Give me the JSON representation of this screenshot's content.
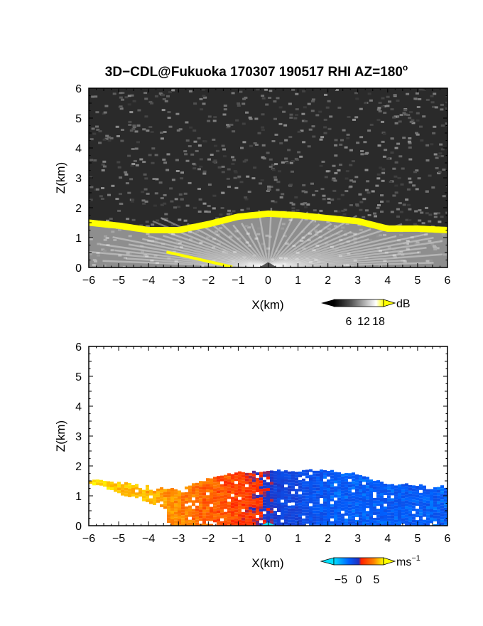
{
  "chart_data": [
    {
      "type": "heatmap",
      "title": "3D−CDL@Fukuoka 170307 190517 RHI AZ=180",
      "title_sup": "o",
      "xlabel": "X(km)",
      "ylabel": "Z(km)",
      "xlim": [
        -6,
        6
      ],
      "ylim": [
        0,
        6
      ],
      "xticks": [
        "−6",
        "−5",
        "−4",
        "−3",
        "−2",
        "−1",
        "0",
        "1",
        "2",
        "3",
        "4",
        "5",
        "6"
      ],
      "yticks": [
        "0",
        "1",
        "2",
        "3",
        "4",
        "5",
        "6"
      ],
      "variable": "SNR",
      "colorbar": {
        "unit": "dB",
        "ticks": [
          "6",
          "12",
          "18"
        ],
        "range": [
          0,
          20
        ],
        "colors": [
          "#000000",
          "#ffffff",
          "#ffff00"
        ]
      },
      "cloud_top_km": [
        [
          -6,
          1.55
        ],
        [
          -5,
          1.45
        ],
        [
          -4,
          1.3
        ],
        [
          -3,
          1.3
        ],
        [
          -2,
          1.5
        ],
        [
          -1,
          1.75
        ],
        [
          0,
          1.85
        ],
        [
          1,
          1.8
        ],
        [
          2,
          1.7
        ],
        [
          3,
          1.6
        ],
        [
          4,
          1.35
        ],
        [
          5,
          1.35
        ],
        [
          6,
          1.3
        ]
      ],
      "background": "noise",
      "colors": {
        "background": "#2a2a2a",
        "echo_edge": "#ffff00",
        "echo_core": "#e0e0e0"
      }
    },
    {
      "type": "heatmap",
      "xlabel": "X(km)",
      "ylabel": "Z(km)",
      "xlim": [
        -6,
        6
      ],
      "ylim": [
        0,
        6
      ],
      "xticks": [
        "−6",
        "−5",
        "−4",
        "−3",
        "−2",
        "−1",
        "0",
        "1",
        "2",
        "3",
        "4",
        "5",
        "6"
      ],
      "yticks": [
        "0",
        "1",
        "2",
        "3",
        "4",
        "5",
        "6"
      ],
      "variable": "Doppler velocity",
      "colorbar": {
        "unit": "ms",
        "unit_sup": "−1",
        "ticks": [
          "−5",
          "0",
          "5"
        ],
        "range": [
          -7,
          7
        ],
        "colors": [
          "#00e0ff",
          "#0060ff",
          "#ff2000",
          "#ff8000",
          "#ffff00"
        ]
      },
      "velocity_profile_ms": [
        [
          -6,
          6
        ],
        [
          -4,
          4.5
        ],
        [
          -2,
          2
        ],
        [
          -0.5,
          0.5
        ],
        [
          0.3,
          -2
        ],
        [
          2,
          -4
        ],
        [
          4,
          -4
        ],
        [
          6,
          -4
        ]
      ],
      "cloud_top_km": [
        [
          -6,
          1.55
        ],
        [
          -5,
          1.45
        ],
        [
          -4,
          1.3
        ],
        [
          -3,
          1.2
        ],
        [
          -2,
          1.6
        ],
        [
          -1,
          1.8
        ],
        [
          0,
          1.85
        ],
        [
          1,
          1.85
        ],
        [
          2,
          1.85
        ],
        [
          3,
          1.7
        ],
        [
          4,
          1.4
        ],
        [
          5,
          1.35
        ],
        [
          6,
          1.3
        ]
      ]
    }
  ]
}
